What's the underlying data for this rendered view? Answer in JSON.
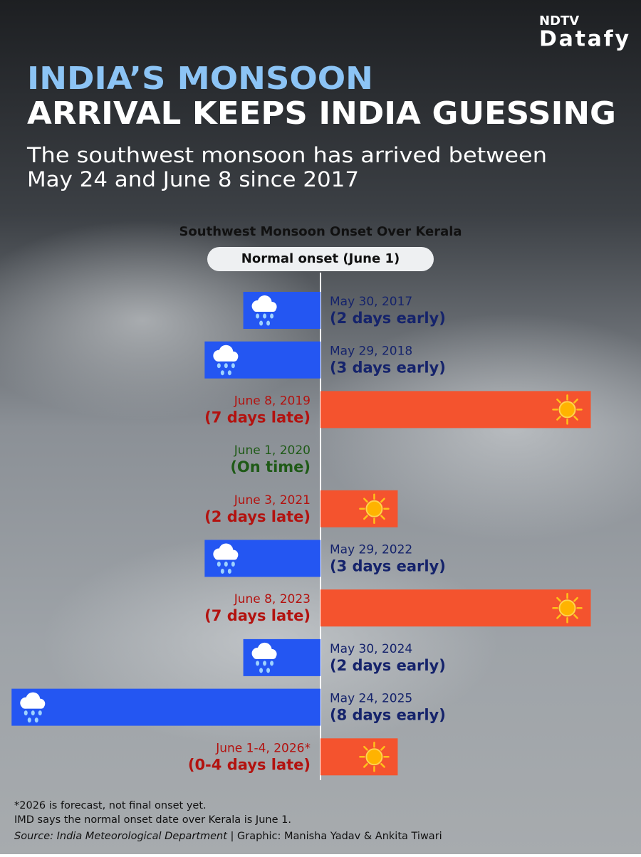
{
  "brand": {
    "top": "NDTV",
    "bottom": "Datafy"
  },
  "chart_data": {
    "type": "bar",
    "orientation": "horizontal",
    "title_lines": [
      "INDIA’S MONSOON",
      "ARRIVAL KEEPS INDIA GUESSING"
    ],
    "subtitle_lines": [
      "The southwest monsoon has arrived between",
      "May 24 and June 8 since 2017"
    ],
    "chart_title": "Southwest Monsoon Onset Over Kerala",
    "reference_label": "Normal onset (June 1)",
    "categories": [
      "May 30, 2017",
      "May 29, 2018",
      "June 8, 2019",
      "June 1, 2020",
      "June 3, 2021",
      "May 29, 2022",
      "June 8, 2023",
      "May 30, 2024",
      "May 24, 2025",
      "June 1-4, 2026*"
    ],
    "values": [
      -2,
      -3,
      7,
      0,
      2,
      -3,
      7,
      -2,
      -8,
      2
    ],
    "value_labels": [
      "(2 days early)",
      "(3 days early)",
      "(7 days late)",
      "(On time)",
      "(2 days late)",
      "(3 days early)",
      "(7 days late)",
      "(2 days early)",
      "(8 days early)",
      "(0-4 days late)"
    ],
    "colors": {
      "early": "#2456f2",
      "late": "#f4532e"
    },
    "xlim": [
      -8.3,
      8.3
    ],
    "notes": [
      "*2026 is forecast, not final onset yet.",
      "IMD says the normal onset date over Kerala is June 1."
    ],
    "source": "Source: India Meteorological Department",
    "credit": " | Graphic: Manisha Yadav & Ankita Tiwari"
  }
}
